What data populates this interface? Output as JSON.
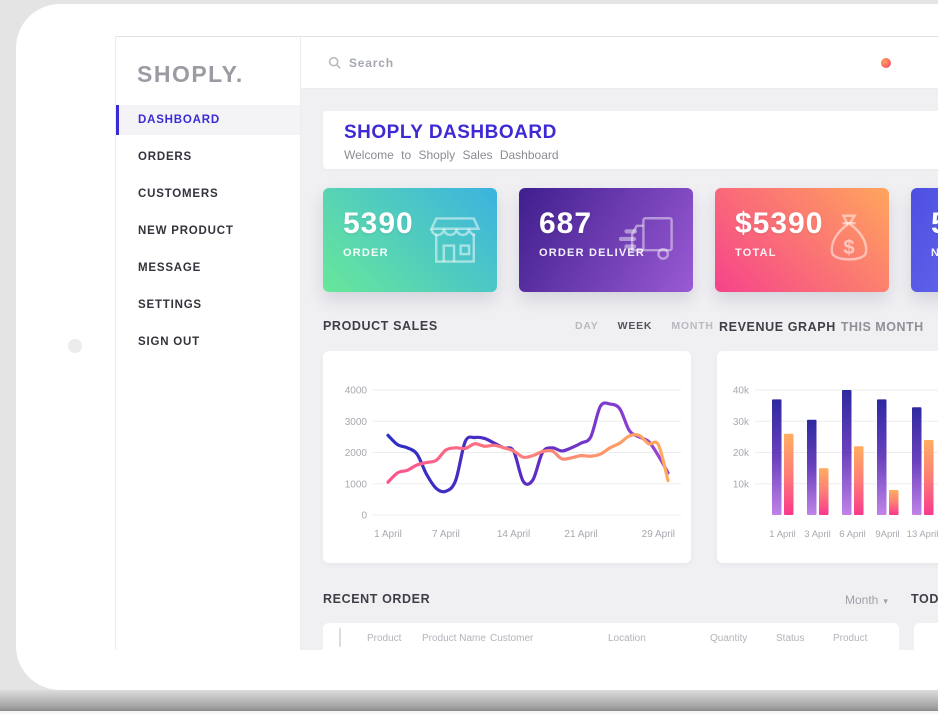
{
  "sidebar": {
    "logo": "SHOPLY.",
    "items": [
      {
        "label": "DASHBOARD",
        "active": true
      },
      {
        "label": "ORDERS",
        "active": false
      },
      {
        "label": "CUSTOMERS",
        "active": false
      },
      {
        "label": "NEW PRODUCT",
        "active": false
      },
      {
        "label": "MESSAGE",
        "active": false
      },
      {
        "label": "SETTINGS",
        "active": false
      },
      {
        "label": "SIGN OUT",
        "active": false
      }
    ],
    "active_color": "#3b2bd5"
  },
  "topbar": {
    "search_placeholder": "Search",
    "notification_badge_colors": [
      "#ffa05c",
      "#f43b6e"
    ]
  },
  "header": {
    "title": "SHOPLY DASHBOARD",
    "subtitle": "Welcome to Shoply Sales Dashboard",
    "title_color": "#3d2ad4"
  },
  "stat_cards": [
    {
      "value": "5390",
      "label": "ORDER",
      "icon": "storefront-icon",
      "gradient": {
        "angle": 45,
        "from": "#68e79a",
        "to": "#3bb3e0"
      }
    },
    {
      "value": "687",
      "label": "ORDER DELIVER",
      "icon": "delivery-truck-icon",
      "gradient": {
        "angle": 120,
        "from": "#3f1e8d",
        "to": "#9a5ad3"
      }
    },
    {
      "value": "$5390",
      "label": "TOTAL",
      "icon": "money-bag-icon",
      "gradient": {
        "angle": 45,
        "from": "#f6438b",
        "to": "#ffa55d"
      }
    },
    {
      "value": "5",
      "label": "N",
      "icon": "",
      "gradient": {
        "angle": 120,
        "from": "#4d4fe2",
        "to": "#7b7ef2"
      }
    }
  ],
  "product_sales": {
    "title": "PRODUCT SALES",
    "range_options": [
      "DAY",
      "WEEK",
      "MONTH"
    ],
    "selected_range": "WEEK"
  },
  "revenue": {
    "title": "REVENUE GRAPH",
    "subtitle": "THIS MONTH"
  },
  "recent_order": {
    "title": "RECENT ORDER",
    "filter_label": "Month",
    "right_panel_title": "TOD",
    "columns": [
      "Product",
      "Product Name",
      "Customer",
      "Location",
      "Quantity",
      "Status",
      "Product"
    ]
  },
  "chart_data": [
    {
      "type": "line",
      "title": "PRODUCT SALES (WEEK view, April)",
      "ylim": [
        0,
        4000
      ],
      "yticks": [
        0,
        1000,
        2000,
        3000,
        4000
      ],
      "x_ticks": [
        {
          "day": 1,
          "label": "1 April"
        },
        {
          "day": 7,
          "label": "7 April"
        },
        {
          "day": 14,
          "label": "14 April"
        },
        {
          "day": 21,
          "label": "21 April"
        },
        {
          "day": 29,
          "label": "29 April"
        }
      ],
      "x_days": [
        1,
        2,
        3,
        4,
        5,
        6,
        7,
        8,
        9,
        10,
        11,
        12,
        13,
        14,
        15,
        16,
        17,
        18,
        19,
        20,
        21,
        22,
        23,
        24,
        25,
        26,
        27,
        28,
        29,
        30
      ],
      "grid": true,
      "legend": "none",
      "series": [
        {
          "name": "sales-indigo-purple",
          "colors": [
            "#2b2fc4",
            "#5a2cc4",
            "#9b46d6"
          ],
          "values": [
            2550,
            2250,
            2150,
            1950,
            1300,
            850,
            760,
            1100,
            2350,
            2480,
            2450,
            2300,
            2150,
            2050,
            1080,
            1120,
            2000,
            2150,
            2050,
            2150,
            2300,
            2500,
            3480,
            3550,
            3400,
            2700,
            2500,
            2350,
            1900,
            1350
          ]
        },
        {
          "name": "sales-pink-orange",
          "colors": [
            "#f9538e",
            "#fd7f7c",
            "#ffab5c"
          ],
          "values": [
            1050,
            1350,
            1430,
            1600,
            1680,
            1750,
            2080,
            2150,
            2130,
            2280,
            2200,
            2230,
            2150,
            2050,
            1850,
            1900,
            2030,
            2050,
            1800,
            1830,
            1900,
            1880,
            1950,
            2150,
            2300,
            2530,
            2550,
            2280,
            2250,
            1100
          ]
        }
      ]
    },
    {
      "type": "bar",
      "title": "REVENUE GRAPH THIS MONTH",
      "categories": [
        "1 April",
        "3 April",
        "6 April",
        "9April",
        "13 April"
      ],
      "ylim": [
        0,
        45000
      ],
      "ytick_labels": [
        "10k",
        "20k",
        "30k",
        "40k"
      ],
      "yticks": [
        10000,
        20000,
        30000,
        40000
      ],
      "grid": true,
      "series": [
        {
          "name": "revenue-purple",
          "gradient": [
            "#2d2a9e",
            "#6a41bd",
            "#c083e8"
          ],
          "values": [
            37000,
            30500,
            40000,
            37000,
            34500
          ]
        },
        {
          "name": "revenue-orange",
          "gradient": [
            "#ffae61",
            "#fd7d77",
            "#f9398b"
          ],
          "values": [
            26000,
            15000,
            22000,
            8000,
            24000
          ]
        }
      ]
    }
  ]
}
